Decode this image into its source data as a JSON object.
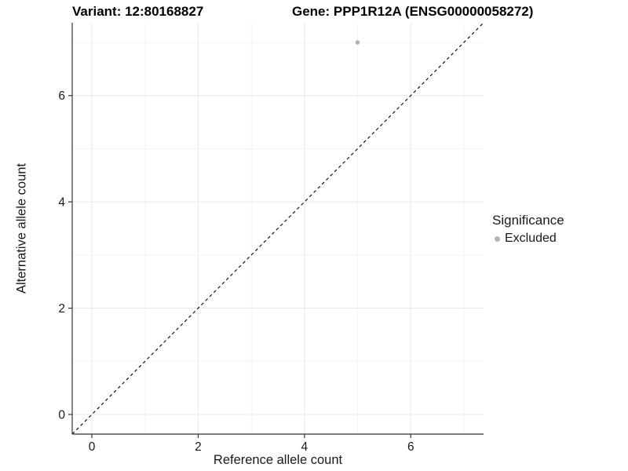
{
  "header": {
    "variant_title": "Variant: 12:80168827",
    "gene_title": "Gene: PPP1R12A (ENSG00000058272)"
  },
  "axes": {
    "x_title": "Reference allele count",
    "y_title": "Alternative allele count"
  },
  "legend": {
    "title": "Significance",
    "items": [
      {
        "label": "Excluded",
        "color": "#b3b3b3",
        "marker": "dot"
      }
    ]
  },
  "chart_data": {
    "type": "scatter",
    "title_left": "Variant: 12:80168827",
    "title_right": "Gene: PPP1R12A (ENSG00000058272)",
    "xlabel": "Reference allele count",
    "ylabel": "Alternative allele count",
    "series": [
      {
        "name": "Excluded",
        "color": "#b3b3b3",
        "points": [
          {
            "x": 5,
            "y": 7
          }
        ]
      }
    ],
    "reference_line": {
      "kind": "identity",
      "equation": "y = x",
      "style": "dashed",
      "color": "#000000"
    },
    "xlim": [
      -0.37,
      7.37
    ],
    "ylim": [
      -0.37,
      7.37
    ],
    "x_major_ticks": [
      0,
      2,
      4,
      6
    ],
    "y_major_ticks": [
      0,
      2,
      4,
      6
    ],
    "x_minor_gridlines": [
      1,
      3,
      5,
      7
    ],
    "y_minor_gridlines": [
      1,
      3,
      5,
      7
    ],
    "grid": true,
    "legend_position": "right",
    "colors": {
      "major_grid": "#e8e8e8",
      "minor_grid": "#f3f3f3",
      "axis_line": "#333333",
      "tick_label": "#1a1a1a",
      "point": "#b3b3b3",
      "dashed_line": "#000000"
    }
  }
}
